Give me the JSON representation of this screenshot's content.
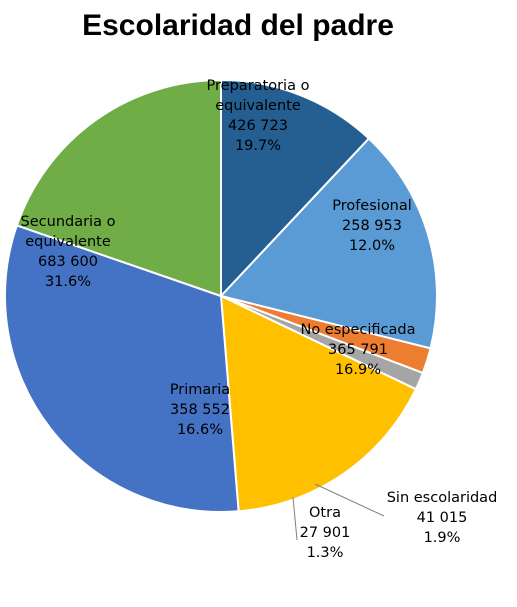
{
  "chart_data": {
    "type": "pie",
    "title": "Escolaridad del padre",
    "slices": [
      {
        "label": [
          "Profesional"
        ],
        "value": "258 953",
        "percent": "12.0%",
        "pct": 12.0,
        "color": "#255e91",
        "text_color": "#000000"
      },
      {
        "label": [
          "No especificada"
        ],
        "value": "365 791",
        "percent": "16.9%",
        "pct": 16.9,
        "color": "#5b9bd5",
        "text_color": "#000000"
      },
      {
        "label": [
          "Sin escolaridad"
        ],
        "value": "41 015",
        "percent": "1.9%",
        "pct": 1.9,
        "color": "#ed7d31",
        "text_color": "#000000"
      },
      {
        "label": [
          "Otra"
        ],
        "value": "27 901",
        "percent": "1.3%",
        "pct": 1.3,
        "color": "#a5a5a5",
        "text_color": "#000000"
      },
      {
        "label": [
          "Primaria"
        ],
        "value": "358 552",
        "percent": "16.6%",
        "pct": 16.6,
        "color": "#ffc000",
        "text_color": "#000000"
      },
      {
        "label": [
          "Secundaria o",
          "equivalente"
        ],
        "value": "683 600",
        "percent": "31.6%",
        "pct": 31.6,
        "color": "#4472c4",
        "text_color": "#000000"
      },
      {
        "label": [
          "Preparatoria o",
          "equivalente"
        ],
        "value": "426 723",
        "percent": "19.7%",
        "pct": 19.7,
        "color": "#70ad47",
        "text_color": "#000000"
      }
    ]
  }
}
